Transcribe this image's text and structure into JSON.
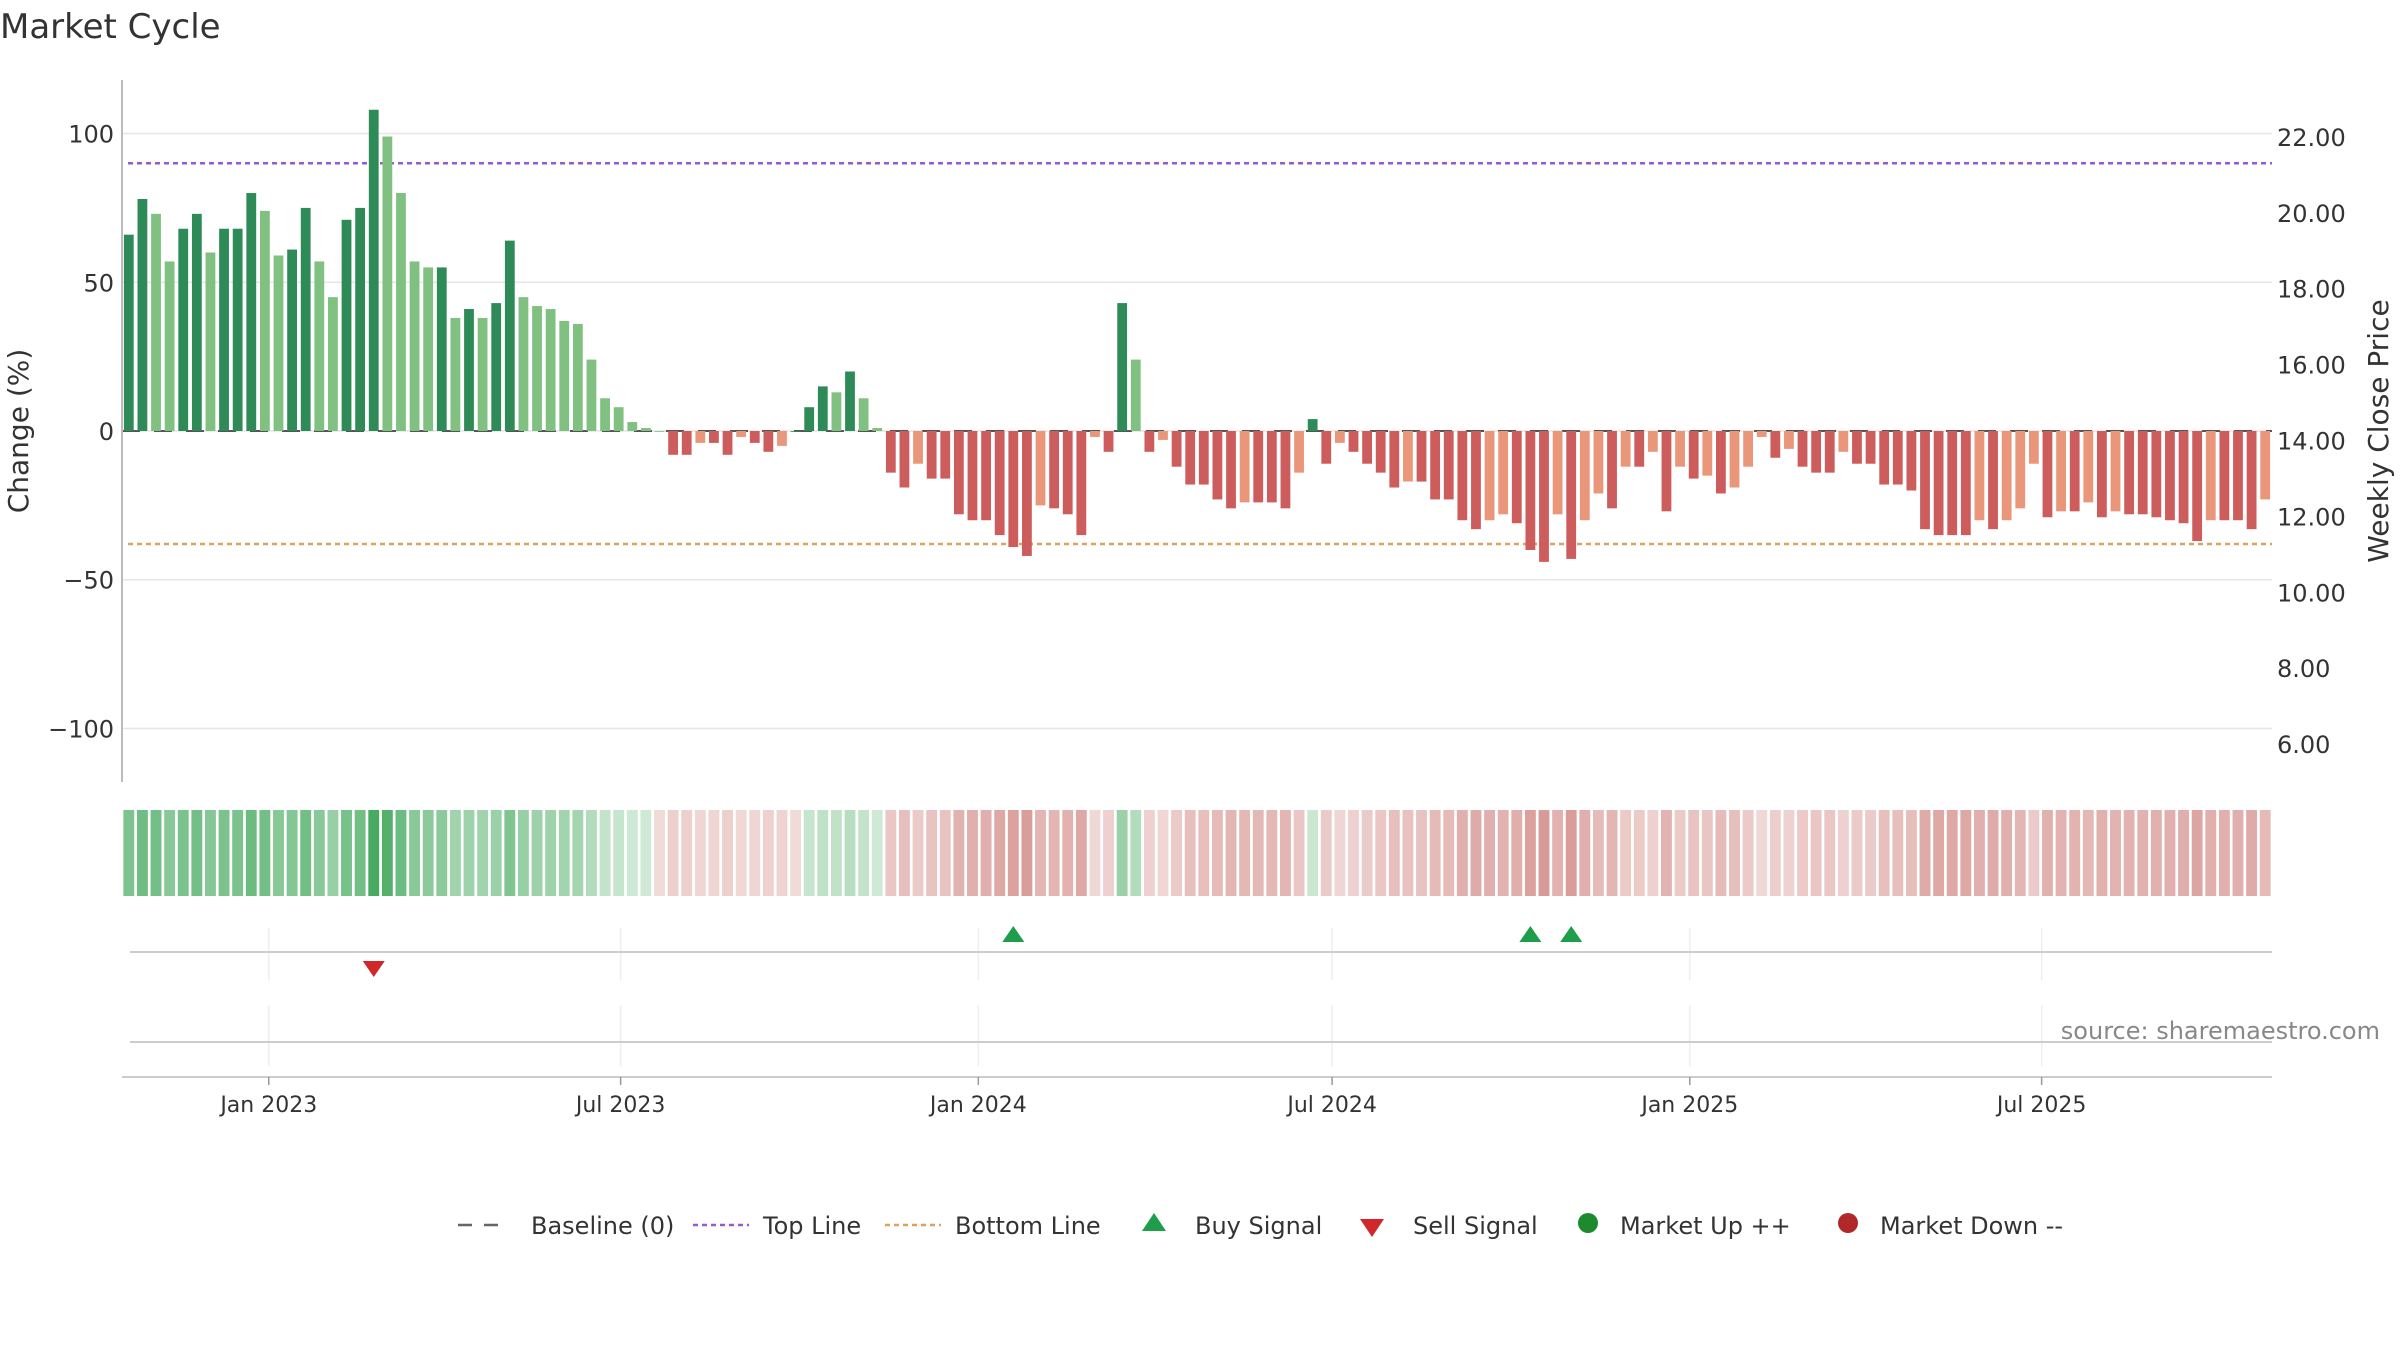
{
  "chart_data": {
    "type": "bar",
    "title": "Market Cycle",
    "ylabel_left": "Change (%)",
    "ylabel_right": "Weekly Close Price",
    "ylim_left": [
      -118,
      118
    ],
    "ylim_right": [
      5.0,
      23.5
    ],
    "yticks_left": [
      100,
      50,
      0,
      -50,
      -100
    ],
    "yticks_left_labels": [
      "100",
      "50",
      "0",
      "−50",
      "−100"
    ],
    "yticks_right": [
      22,
      20,
      18,
      16,
      14,
      12,
      10,
      8,
      6
    ],
    "yticks_right_labels": [
      "22.00",
      "20.00",
      "18.00",
      "16.00",
      "14.00",
      "12.00",
      "10.00",
      "8.00",
      "6.00"
    ],
    "top_line": 90,
    "bottom_line": -38,
    "baseline": 0,
    "x_start": "2022-10-21",
    "x_step_days": 7,
    "xtick_dates": [
      "2023-01-01",
      "2023-07-01",
      "2024-01-01",
      "2024-07-01",
      "2025-01-01",
      "2025-07-01"
    ],
    "xtick_labels": [
      "Jan 2023",
      "Jul 2023",
      "Jan 2024",
      "Jul 2024",
      "Jan 2025",
      "Jul 2025"
    ],
    "values": [
      66,
      78,
      73,
      57,
      68,
      73,
      60,
      68,
      68,
      80,
      74,
      59,
      61,
      75,
      57,
      45,
      71,
      75,
      108,
      99,
      80,
      57,
      55,
      55,
      38,
      41,
      38,
      43,
      64,
      45,
      42,
      41,
      37,
      36,
      24,
      11,
      8,
      3,
      1,
      0,
      -8,
      -8,
      -4,
      -4,
      -8,
      -2,
      -4,
      -7,
      -5,
      0,
      8,
      15,
      13,
      20,
      11,
      1,
      -14,
      -19,
      -11,
      -16,
      -16,
      -28,
      -30,
      -30,
      -35,
      -39,
      -42,
      -25,
      -26,
      -28,
      -35,
      -2,
      -7,
      43,
      24,
      -7,
      -3,
      -12,
      -18,
      -18,
      -23,
      -26,
      -24,
      -24,
      -24,
      -26,
      -14,
      4,
      -11,
      -4,
      -7,
      -11,
      -14,
      -19,
      -17,
      -17,
      -23,
      -23,
      -30,
      -33,
      -30,
      -28,
      -31,
      -40,
      -44,
      -28,
      -43,
      -30,
      -21,
      -26,
      -12,
      -12,
      -7,
      -27,
      -12,
      -16,
      -15,
      -21,
      -19,
      -12,
      -2,
      -9,
      -6,
      -12,
      -14,
      -14,
      -7,
      -11,
      -11,
      -18,
      -18,
      -20,
      -33,
      -35,
      -35,
      -35,
      -30,
      -33,
      -30,
      -26,
      -11,
      -29,
      -27,
      -27,
      -24,
      -29,
      -27,
      -28,
      -28,
      -29,
      -30,
      -31,
      -37,
      -30,
      -30,
      -30,
      -33,
      -23
    ],
    "buy_signals": [
      65,
      103,
      106
    ],
    "sell_signals": [
      18
    ],
    "legend": [
      {
        "label": "Baseline (0)",
        "marker": "dash",
        "color": "#666666"
      },
      {
        "label": "Top Line",
        "marker": "dotted",
        "color": "#9b59d0"
      },
      {
        "label": "Bottom Line",
        "marker": "dotted",
        "color": "#e0a060"
      },
      {
        "label": "Buy Signal",
        "marker": "triangle-up",
        "color": "#1e9e4a"
      },
      {
        "label": "Sell Signal",
        "marker": "triangle-down",
        "color": "#d0282a"
      },
      {
        "label": "Market Up ++",
        "marker": "circle",
        "color": "#1e8a2e"
      },
      {
        "label": "Market Down --",
        "marker": "circle",
        "color": "#b02828"
      }
    ],
    "source": "source: sharemaestro.com",
    "colors": {
      "up_dark": "#2e8b57",
      "up_light": "#80c080",
      "down_dark": "#cd5c5c",
      "down_light": "#e9967a",
      "top_line": "#9b59d0",
      "bottom_line": "#e0a060",
      "buy": "#1e9e4a",
      "sell": "#d0282a"
    }
  }
}
